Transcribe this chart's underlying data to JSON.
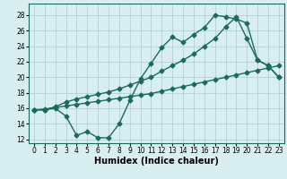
{
  "line1_x": [
    0,
    1,
    2,
    3,
    4,
    5,
    6,
    7,
    8,
    9,
    10,
    11,
    12,
    13,
    14,
    15,
    16,
    17,
    18,
    19,
    20,
    21,
    22,
    23
  ],
  "line1_y": [
    15.8,
    15.8,
    16.0,
    15.0,
    12.5,
    13.0,
    12.2,
    12.2,
    14.0,
    17.0,
    19.8,
    21.8,
    23.8,
    25.2,
    24.5,
    25.5,
    26.4,
    28.0,
    27.8,
    27.5,
    27.0,
    22.2,
    21.5,
    20.0
  ],
  "line2_x": [
    0,
    1,
    2,
    3,
    4,
    5,
    6,
    7,
    8,
    9,
    10,
    11,
    12,
    13,
    14,
    15,
    16,
    17,
    18,
    19,
    20,
    21,
    22,
    23
  ],
  "line2_y": [
    15.8,
    15.8,
    16.2,
    16.8,
    17.2,
    17.5,
    17.8,
    18.1,
    18.5,
    19.0,
    19.5,
    20.0,
    20.8,
    21.5,
    22.2,
    23.0,
    24.0,
    25.0,
    26.5,
    27.8,
    25.0,
    22.2,
    21.5,
    20.0
  ],
  "line3_x": [
    0,
    1,
    2,
    3,
    4,
    5,
    6,
    7,
    8,
    9,
    10,
    11,
    12,
    13,
    14,
    15,
    16,
    17,
    18,
    19,
    20,
    21,
    22,
    23
  ],
  "line3_y": [
    15.8,
    15.9,
    16.1,
    16.3,
    16.5,
    16.7,
    16.9,
    17.1,
    17.3,
    17.5,
    17.7,
    17.9,
    18.2,
    18.5,
    18.8,
    19.1,
    19.4,
    19.7,
    20.0,
    20.3,
    20.6,
    20.9,
    21.2,
    21.5
  ],
  "line_color": "#1a6b5a",
  "bg_color": "#d8eef0",
  "grid_color": "#aacccc",
  "xlabel": "Humidex (Indice chaleur)",
  "xlim": [
    -0.5,
    23.5
  ],
  "ylim": [
    11.5,
    29.5
  ],
  "yticks": [
    12,
    14,
    16,
    18,
    20,
    22,
    24,
    26,
    28
  ],
  "xticks": [
    0,
    1,
    2,
    3,
    4,
    5,
    6,
    7,
    8,
    9,
    10,
    11,
    12,
    13,
    14,
    15,
    16,
    17,
    18,
    19,
    20,
    21,
    22,
    23
  ],
  "marker": "D",
  "markersize": 2.5,
  "linewidth": 1.0,
  "xlabel_fontsize": 7.0,
  "tick_fontsize": 5.5
}
